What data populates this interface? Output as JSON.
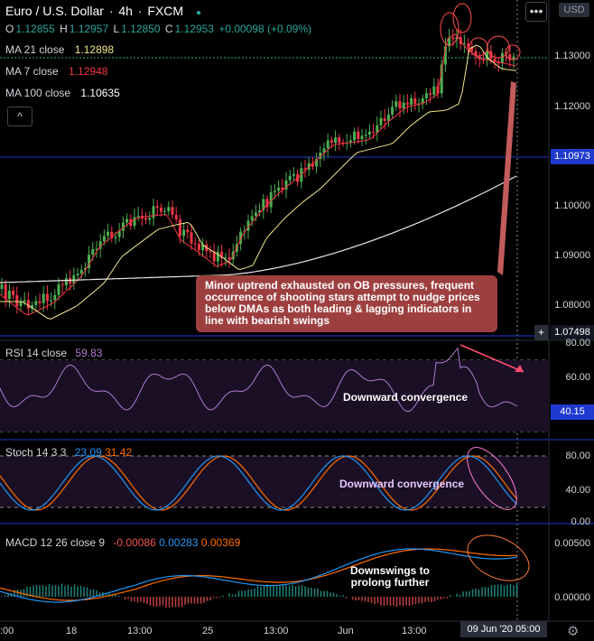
{
  "header": {
    "symbol": "Euro / U.S. Dollar",
    "interval": "4h",
    "source": "FXCM",
    "menu_label": "•••",
    "currency": "USD"
  },
  "ohlc": {
    "o_label": "O",
    "o": "1.12855",
    "h_label": "H",
    "h": "1.12957",
    "l_label": "L",
    "l": "1.12850",
    "c_label": "C",
    "c": "1.12953",
    "change": "+0.00098 (+0.09%)"
  },
  "indicators": {
    "ma21": {
      "label": "MA 21 close",
      "value": "1.12898"
    },
    "ma7": {
      "label": "MA 7 close",
      "value": "1.12948"
    },
    "ma100": {
      "label": "MA 100 close",
      "value": "1.10635"
    },
    "collapse_label": "^"
  },
  "price_axis": {
    "ticks": [
      "1.13000",
      "1.12000",
      "1.10000",
      "1.09000",
      "1.08000"
    ],
    "marker_high": "1.10973",
    "marker_low": "1.07498",
    "plus": "+"
  },
  "callout": {
    "text": "Minor uptrend exhausted on OB pressures, frequent occurrence of shooting stars attempt to nudge prices below DMAs as both leading & lagging indicators in line with bearish swings"
  },
  "rsi": {
    "label": "RSI 14 close",
    "value": "59.83",
    "ticks": [
      "80.00",
      "60.00"
    ],
    "marker": "40.15",
    "annotation": "Downward convergence"
  },
  "stoch": {
    "label": "Stoch 14 3 3",
    "k": "23.09",
    "d": "31.42",
    "ticks": [
      "80.00",
      "40.00",
      "0.00"
    ],
    "annotation": "Downward convergence"
  },
  "macd": {
    "label": "MACD 12 26 close 9",
    "hist": "-0.00086",
    "macd": "0.00283",
    "signal": "0.00369",
    "ticks": [
      "0.00500",
      "0.00000"
    ],
    "annotation_line1": "Downswings to",
    "annotation_line2": "prolong further"
  },
  "time_axis": {
    "labels": [
      ":00",
      "18",
      "13:00",
      "25",
      "13:00",
      "Jun",
      "13:00"
    ],
    "cursor_time": "09 Jun '20  05:00"
  },
  "colors": {
    "up": "#26a69a",
    "down": "#ef5350",
    "bull_candle": "#4caf50",
    "bear_candle": "#f23645",
    "ma21": "#f0e68c",
    "ma7": "#f23645",
    "ma100": "#e8e8e8",
    "rsi": "#b07cd0",
    "stoch_k": "#2196f3",
    "stoch_d": "#ff6d00",
    "macd": "#2196f3",
    "signal": "#ff6d00",
    "marker_blue": "#1e3acf",
    "callout": "#9e3f3f"
  }
}
